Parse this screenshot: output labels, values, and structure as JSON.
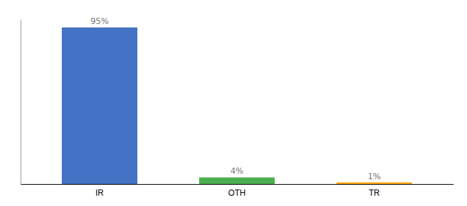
{
  "chart_data": {
    "type": "bar",
    "categories": [
      "IR",
      "OTH",
      "TR"
    ],
    "values": [
      95,
      4,
      1
    ],
    "value_labels": [
      "95%",
      "4%",
      "1%"
    ],
    "colors": [
      "#4472c4",
      "#4caf50",
      "#ffa500"
    ],
    "ylim": [
      0,
      100
    ],
    "data_labels": true,
    "tick_labels": "x"
  }
}
